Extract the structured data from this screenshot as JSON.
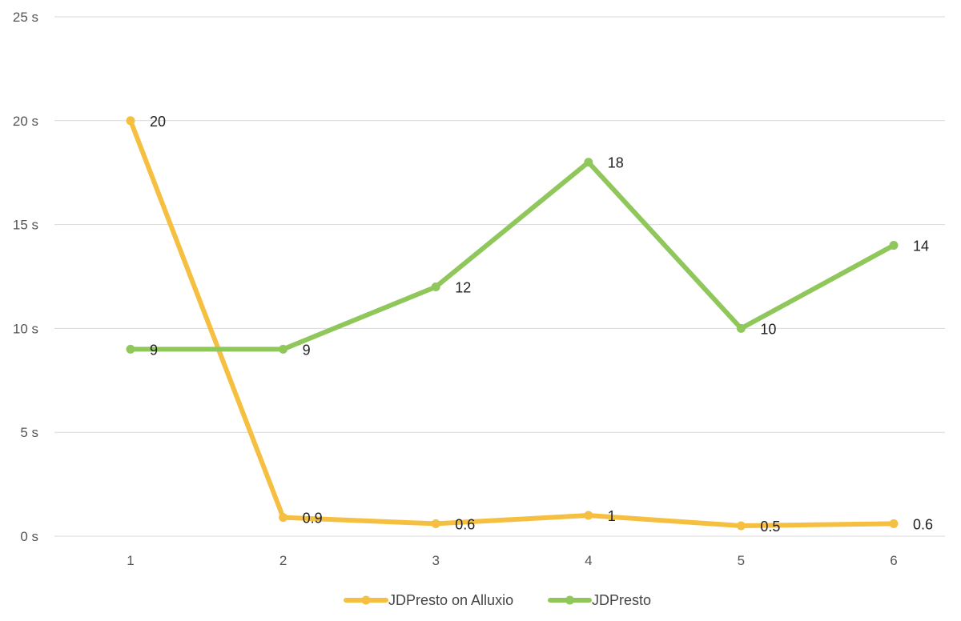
{
  "chart_data": {
    "type": "line",
    "title": "",
    "xlabel": "",
    "ylabel": "",
    "categories": [
      "1",
      "2",
      "3",
      "4",
      "5",
      "6"
    ],
    "y_ticks": [
      0,
      5,
      10,
      15,
      20,
      25
    ],
    "y_tick_labels": [
      "0 s",
      "5 s",
      "10 s",
      "15 s",
      "20 s",
      "25 s"
    ],
    "ylim": [
      0,
      25
    ],
    "grid": true,
    "legend_position": "bottom",
    "series": [
      {
        "name": "JDPresto on Alluxio",
        "color": "#f5c042",
        "values": [
          20,
          0.9,
          0.6,
          1,
          0.5,
          0.6
        ],
        "labels": [
          "20",
          "0.9",
          "0.6",
          "1",
          "0.5",
          "0.6"
        ]
      },
      {
        "name": "JDPresto",
        "color": "#8fc75b",
        "values": [
          9,
          9,
          12,
          18,
          10,
          14
        ],
        "labels": [
          "9",
          "9",
          "12",
          "18",
          "10",
          "14"
        ]
      }
    ]
  }
}
